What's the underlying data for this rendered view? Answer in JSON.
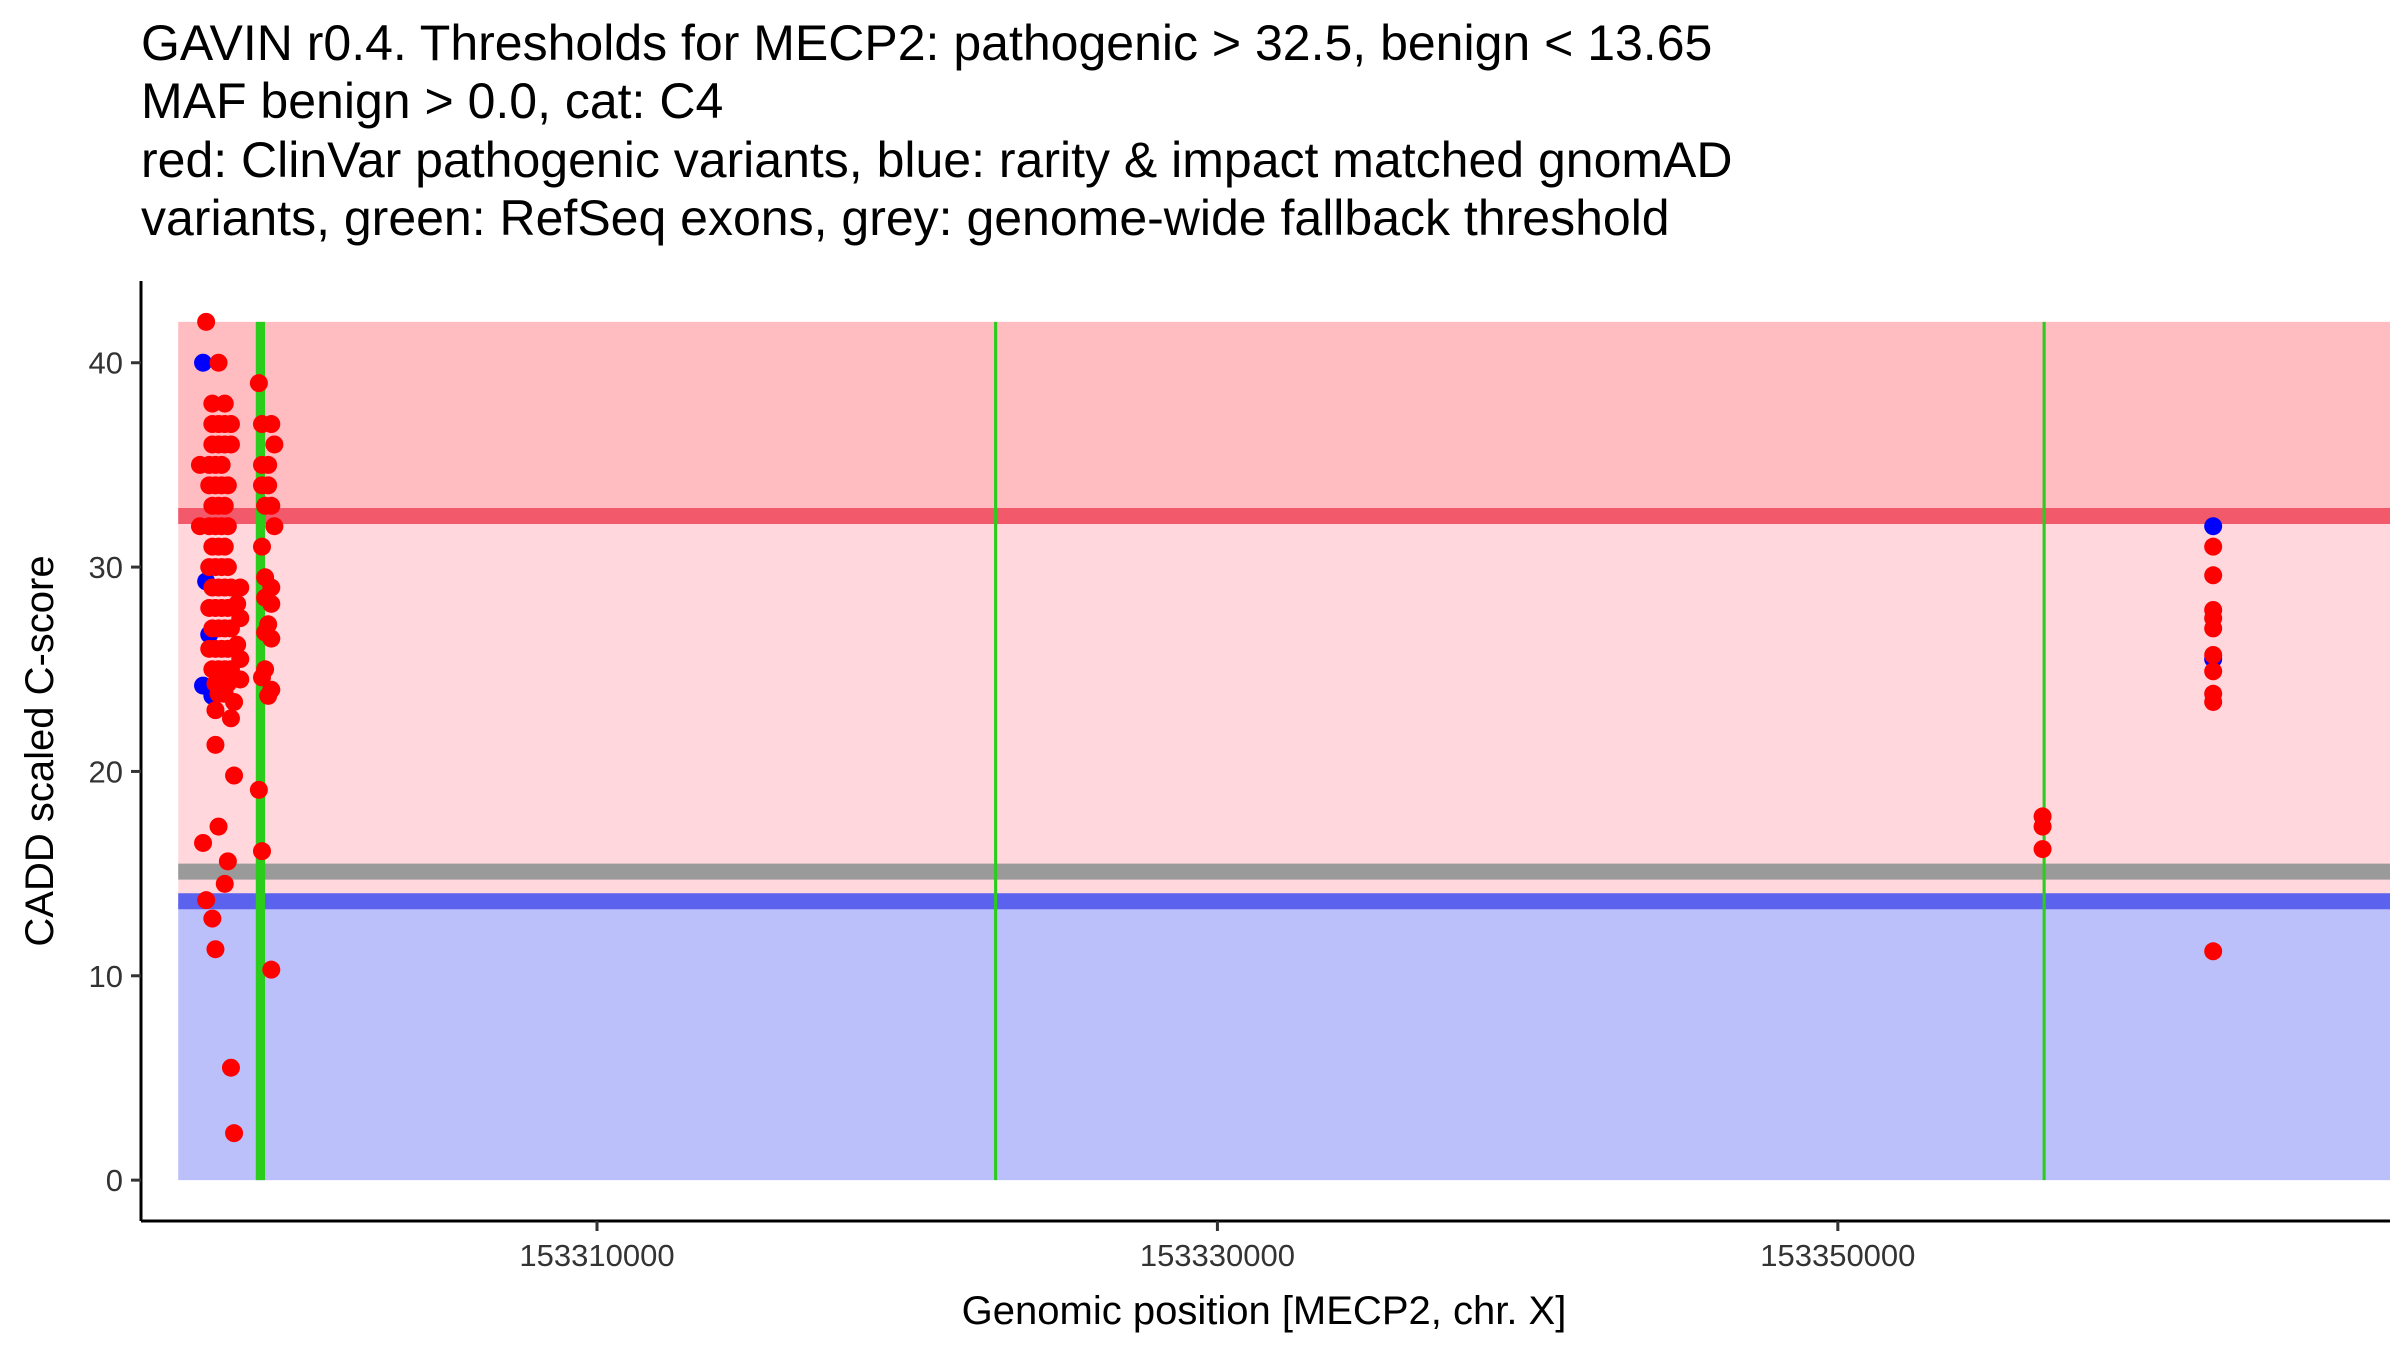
{
  "chart_data": {
    "type": "scatter",
    "title_lines": [
      "GAVIN r0.4. Thresholds for MECP2: pathogenic > 32.5, benign < 13.65",
      "MAF benign > 0.0, cat: C4",
      "red: ClinVar pathogenic variants, blue: rarity & impact matched gnomAD",
      "variants, green: RefSeq exons, grey: genome-wide fallback threshold"
    ],
    "xlabel": "Genomic position [MECP2, chr. X]",
    "ylabel": "CADD scaled C-score",
    "xlim": [
      153295300,
      153367800
    ],
    "ylim": [
      -2,
      44
    ],
    "x_ticks": [
      153310000,
      153330000,
      153350000
    ],
    "y_ticks": [
      0,
      10,
      20,
      30,
      40
    ],
    "grid": false,
    "regions": {
      "region_x": [
        153296500,
        153367800
      ],
      "benign_band": {
        "from": 0,
        "to": 13.65,
        "color": "#bbc0fa"
      },
      "middle_band": {
        "from": 13.65,
        "to": 32.5,
        "color": "#ffd7dc"
      },
      "pathogenic_band": {
        "from": 32.5,
        "to": 42,
        "color": "#ffbcc1"
      }
    },
    "threshold_lines": [
      {
        "name": "pathogenic",
        "value": 32.5,
        "color": "#f2596a"
      },
      {
        "name": "fallback",
        "value": 15.1,
        "color": "#9a9a9a"
      },
      {
        "name": "benign",
        "value": 13.65,
        "color": "#5a62ee"
      }
    ],
    "exons": [
      {
        "start": 153299000,
        "end": 153299300
      },
      {
        "start": 153322800,
        "end": 153322900
      },
      {
        "start": 153356600,
        "end": 153356700
      }
    ],
    "colors": {
      "clinvar": "#ff0000",
      "gnomad": "#0000ff",
      "exon": "#2ccc1c"
    },
    "series": [
      {
        "name": "gnomAD variants",
        "color": "#0000ff",
        "points": [
          [
            153297300,
            40.0
          ],
          [
            153297400,
            29.3
          ],
          [
            153297500,
            26.7
          ],
          [
            153297300,
            24.2
          ],
          [
            153297600,
            23.7
          ],
          [
            153362100,
            32.0
          ],
          [
            153362100,
            25.5
          ]
        ]
      },
      {
        "name": "ClinVar pathogenic variants",
        "color": "#ff0000",
        "points": [
          [
            153297400,
            42.0
          ],
          [
            153297800,
            40.0
          ],
          [
            153297200,
            35.0
          ],
          [
            153297200,
            32.0
          ],
          [
            153297300,
            16.5
          ],
          [
            153297400,
            13.7
          ],
          [
            153297600,
            12.8
          ],
          [
            153297700,
            11.3
          ],
          [
            153297800,
            17.3
          ],
          [
            153297700,
            21.3
          ],
          [
            153297700,
            23.0
          ],
          [
            153298100,
            15.6
          ],
          [
            153298000,
            14.5
          ],
          [
            153298300,
            19.8
          ],
          [
            153298200,
            5.5
          ],
          [
            153298300,
            2.3
          ],
          [
            153298200,
            22.6
          ],
          [
            153298300,
            23.4
          ],
          [
            153297600,
            38.0
          ],
          [
            153298000,
            38.0
          ],
          [
            153297600,
            37.0
          ],
          [
            153297800,
            37.0
          ],
          [
            153298000,
            37.0
          ],
          [
            153298200,
            37.0
          ],
          [
            153297600,
            36.0
          ],
          [
            153297800,
            36.0
          ],
          [
            153298000,
            36.0
          ],
          [
            153298200,
            36.0
          ],
          [
            153297500,
            35.0
          ],
          [
            153297700,
            35.0
          ],
          [
            153297900,
            35.0
          ],
          [
            153297500,
            34.0
          ],
          [
            153297700,
            34.0
          ],
          [
            153297900,
            34.0
          ],
          [
            153298100,
            34.0
          ],
          [
            153297600,
            33.0
          ],
          [
            153297800,
            33.0
          ],
          [
            153298000,
            33.0
          ],
          [
            153297500,
            32.0
          ],
          [
            153297700,
            32.0
          ],
          [
            153297900,
            32.0
          ],
          [
            153298100,
            32.0
          ],
          [
            153297600,
            31.0
          ],
          [
            153297800,
            31.0
          ],
          [
            153298000,
            31.0
          ],
          [
            153297500,
            30.0
          ],
          [
            153297700,
            30.0
          ],
          [
            153297900,
            30.0
          ],
          [
            153298100,
            30.0
          ],
          [
            153297600,
            29.0
          ],
          [
            153297800,
            29.0
          ],
          [
            153298000,
            29.0
          ],
          [
            153298200,
            29.0
          ],
          [
            153297500,
            28.0
          ],
          [
            153297700,
            28.0
          ],
          [
            153297900,
            28.0
          ],
          [
            153298100,
            28.0
          ],
          [
            153297600,
            27.0
          ],
          [
            153297800,
            27.0
          ],
          [
            153298000,
            27.0
          ],
          [
            153298200,
            27.0
          ],
          [
            153297500,
            26.0
          ],
          [
            153297700,
            26.0
          ],
          [
            153297900,
            26.0
          ],
          [
            153298100,
            26.0
          ],
          [
            153297600,
            25.0
          ],
          [
            153297800,
            25.0
          ],
          [
            153298000,
            25.0
          ],
          [
            153298200,
            25.0
          ],
          [
            153297700,
            24.3
          ],
          [
            153297900,
            24.3
          ],
          [
            153298100,
            24.3
          ],
          [
            153297800,
            23.8
          ],
          [
            153298000,
            23.8
          ],
          [
            153298500,
            29.0
          ],
          [
            153298500,
            27.5
          ],
          [
            153298500,
            25.5
          ],
          [
            153298500,
            24.5
          ],
          [
            153298400,
            28.2
          ],
          [
            153298400,
            26.2
          ],
          [
            153299100,
            39.0
          ],
          [
            153299200,
            37.0
          ],
          [
            153299500,
            37.0
          ],
          [
            153299600,
            36.0
          ],
          [
            153299200,
            35.0
          ],
          [
            153299400,
            35.0
          ],
          [
            153299200,
            34.0
          ],
          [
            153299400,
            34.0
          ],
          [
            153299300,
            33.0
          ],
          [
            153299500,
            33.0
          ],
          [
            153299600,
            32.0
          ],
          [
            153299200,
            31.0
          ],
          [
            153299300,
            29.5
          ],
          [
            153299500,
            29.0
          ],
          [
            153299300,
            28.5
          ],
          [
            153299500,
            28.2
          ],
          [
            153299400,
            27.2
          ],
          [
            153299300,
            26.8
          ],
          [
            153299500,
            26.5
          ],
          [
            153299300,
            25.0
          ],
          [
            153299200,
            24.6
          ],
          [
            153299500,
            24.0
          ],
          [
            153299400,
            23.7
          ],
          [
            153299100,
            19.1
          ],
          [
            153299200,
            16.1
          ],
          [
            153299500,
            10.3
          ],
          [
            153356600,
            17.8
          ],
          [
            153356600,
            17.3
          ],
          [
            153356600,
            16.2
          ],
          [
            153362100,
            31.0
          ],
          [
            153362100,
            29.6
          ],
          [
            153362100,
            27.9
          ],
          [
            153362100,
            27.5
          ],
          [
            153362100,
            27.0
          ],
          [
            153362100,
            25.7
          ],
          [
            153362100,
            24.9
          ],
          [
            153362100,
            23.8
          ],
          [
            153362100,
            23.4
          ],
          [
            153362100,
            11.2
          ]
        ]
      }
    ]
  }
}
